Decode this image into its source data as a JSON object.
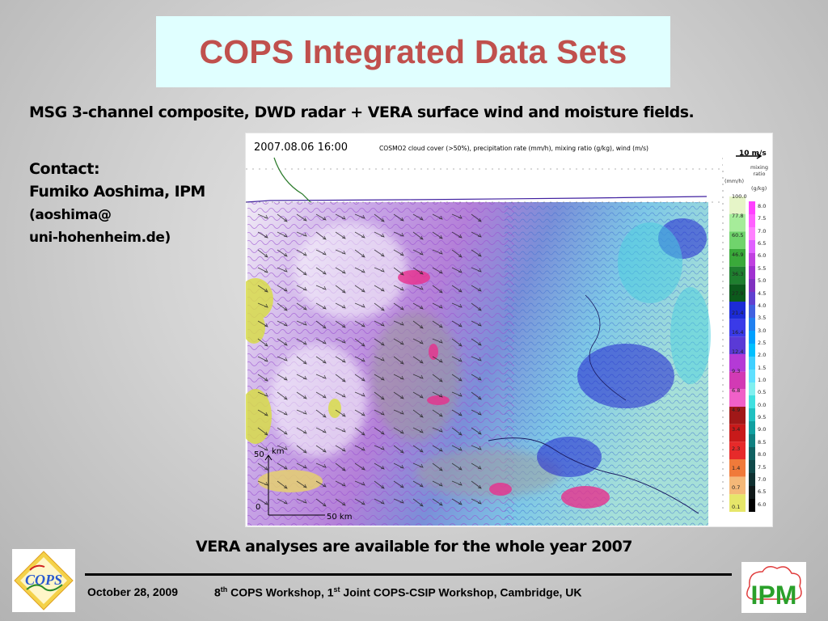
{
  "slide": {
    "title": "COPS Integrated Data Sets",
    "subtitle": "MSG 3-channel composite, DWD radar + VERA surface wind and moisture fields.",
    "contact_heading": "Contact:",
    "contact_name": "Fumiko Aoshima, IPM",
    "contact_email_line1": "(aoshima@",
    "contact_email_line2": "uni-hohenheim.de)",
    "availability_note": "VERA analyses are available for the whole year 2007"
  },
  "figure": {
    "timestamp": "2007.08.06 16:00",
    "caption": "COSMO2 cloud cover (>50%), precipitation rate (mm/h), mixing ratio (g/kg), wind (m/s)",
    "wind_key": "10 m/s",
    "mixing_label": "mixing ratio",
    "precip_unit": "(mm/h)",
    "mixing_unit": "(g/kg)",
    "precip_values": [
      "100.0",
      "77.8",
      "60.5",
      "46.9",
      "36.3",
      "27.9",
      "21.4",
      "16.4",
      "12.4",
      "9.3",
      "6.8",
      "4.9",
      "3.4",
      "2.3",
      "1.4",
      "0.7",
      "0.1"
    ],
    "mixing_values": [
      "8.0",
      "7.5",
      "7.0",
      "6.5",
      "6.0",
      "5.5",
      "5.0",
      "4.5",
      "4.0",
      "3.5",
      "3.0",
      "2.5",
      "2.0",
      "1.5",
      "1.0",
      "0.5",
      "0.0",
      "9.5",
      "9.0",
      "8.5",
      "8.0",
      "7.5",
      "7.0",
      "6.5",
      "6.0"
    ],
    "scale_km_label": "km",
    "scale_50": "50",
    "scale_0": "0",
    "scale_x": "50 km",
    "colors": {
      "precip": [
        "#e6f5c8",
        "#a6ec9a",
        "#70d46c",
        "#3aa93a",
        "#1f7f2f",
        "#0c5a1c",
        "#1c2bd6",
        "#3a3ae8",
        "#5a3ad6",
        "#b43ad6",
        "#d23ab4",
        "#f060c8",
        "#a01818",
        "#c81a1a",
        "#e62a2a",
        "#f07a3a",
        "#f4b878",
        "#e6e66a"
      ],
      "mixing": [
        "#ff40ff",
        "#ff60ff",
        "#ff80ff",
        "#e060ff",
        "#c040e0",
        "#a030d0",
        "#8030c0",
        "#6040d0",
        "#4060e0",
        "#2080f0",
        "#00a0ff",
        "#00c0ff",
        "#40d0ff",
        "#60e0ff",
        "#80f0f0",
        "#40e0e0",
        "#20c0c0",
        "#10a0a0",
        "#108080",
        "#106060",
        "#104848",
        "#103030",
        "#101818",
        "#000000"
      ]
    }
  },
  "footer": {
    "date": "October 28, 2009",
    "ws_num1": "8",
    "ws_sup1": "th",
    "ws_text1": " COPS Workshop, 1",
    "ws_sup2": "st",
    "ws_text2": " Joint COPS-CSIP Workshop, Cambridge, UK",
    "logo_left": "COPS",
    "logo_right": "IPM"
  }
}
